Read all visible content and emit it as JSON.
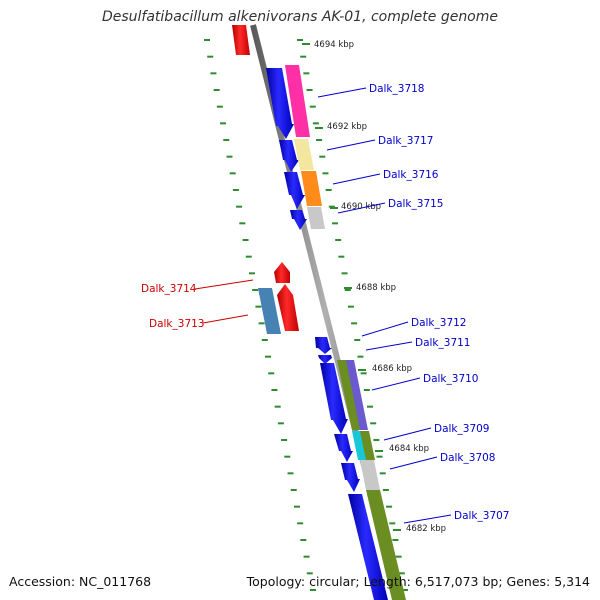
{
  "title": "Desulfatibacillum alkenivorans AK-01, complete genome",
  "footer": {
    "accession": "Accession: NC_011768",
    "summary": "Topology: circular; Length: 6,517,073 bp; Genes: 5,314"
  },
  "scale_labels": [
    "4694 kbp",
    "4692 kbp",
    "4690 kbp",
    "4688 kbp",
    "4686 kbp",
    "4684 kbp",
    "4682 kbp"
  ],
  "colors": {
    "backbone": "#808080",
    "forward_gene": "#0000ee",
    "reverse_gene": "#ee0000",
    "tick": "#2e8b2e",
    "label_blue": "#0000cc",
    "label_red": "#cc0000"
  },
  "genes": [
    {
      "name": "Dalk_3718",
      "cog_color": "#ff2fa6"
    },
    {
      "name": "Dalk_3717",
      "cog_color": "#f2e6a0"
    },
    {
      "name": "Dalk_3716",
      "cog_color": "#ff8c1a"
    },
    {
      "name": "Dalk_3715",
      "cog_color": "#c8c8c8"
    },
    {
      "name": "Dalk_3714",
      "cog_color": null
    },
    {
      "name": "Dalk_3713",
      "cog_color": "#4682b4"
    },
    {
      "name": "Dalk_3712",
      "cog_color": null
    },
    {
      "name": "Dalk_3711",
      "cog_color": null
    },
    {
      "name": "Dalk_3710",
      "cog_color": "#6b8e23"
    },
    {
      "name": "Dalk_3709",
      "cog_color": "#18c8d8"
    },
    {
      "name": "Dalk_3708",
      "cog_color": "#c8c8c8"
    },
    {
      "name": "Dalk_3707",
      "cog_color": "#6b8e23"
    }
  ]
}
